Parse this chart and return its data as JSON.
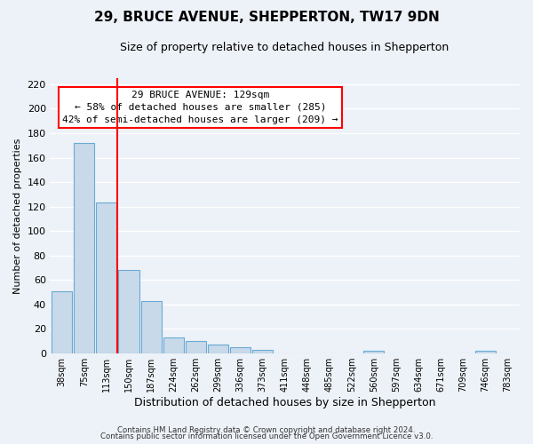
{
  "title": "29, BRUCE AVENUE, SHEPPERTON, TW17 9DN",
  "subtitle": "Size of property relative to detached houses in Shepperton",
  "xlabel": "Distribution of detached houses by size in Shepperton",
  "ylabel": "Number of detached properties",
  "bar_labels": [
    "38sqm",
    "75sqm",
    "113sqm",
    "150sqm",
    "187sqm",
    "224sqm",
    "262sqm",
    "299sqm",
    "336sqm",
    "373sqm",
    "411sqm",
    "448sqm",
    "485sqm",
    "522sqm",
    "560sqm",
    "597sqm",
    "634sqm",
    "671sqm",
    "709sqm",
    "746sqm",
    "783sqm"
  ],
  "bar_values": [
    51,
    172,
    123,
    68,
    43,
    13,
    10,
    7,
    5,
    3,
    0,
    0,
    0,
    0,
    2,
    0,
    0,
    0,
    0,
    2,
    0
  ],
  "bar_color": "#c8d9ea",
  "bar_edge_color": "#6aaad4",
  "vline_x": 2.5,
  "vline_color": "red",
  "annotation_title": "29 BRUCE AVENUE: 129sqm",
  "annotation_line1": "← 58% of detached houses are smaller (285)",
  "annotation_line2": "42% of semi-detached houses are larger (209) →",
  "annotation_box_color": "white",
  "annotation_box_edge": "red",
  "ylim": [
    0,
    225
  ],
  "yticks": [
    0,
    20,
    40,
    60,
    80,
    100,
    120,
    140,
    160,
    180,
    200,
    220
  ],
  "footer1": "Contains HM Land Registry data © Crown copyright and database right 2024.",
  "footer2": "Contains public sector information licensed under the Open Government Licence v3.0.",
  "bg_color": "#edf2f8",
  "grid_color": "#c8d4e0",
  "title_fontsize": 11,
  "subtitle_fontsize": 9
}
